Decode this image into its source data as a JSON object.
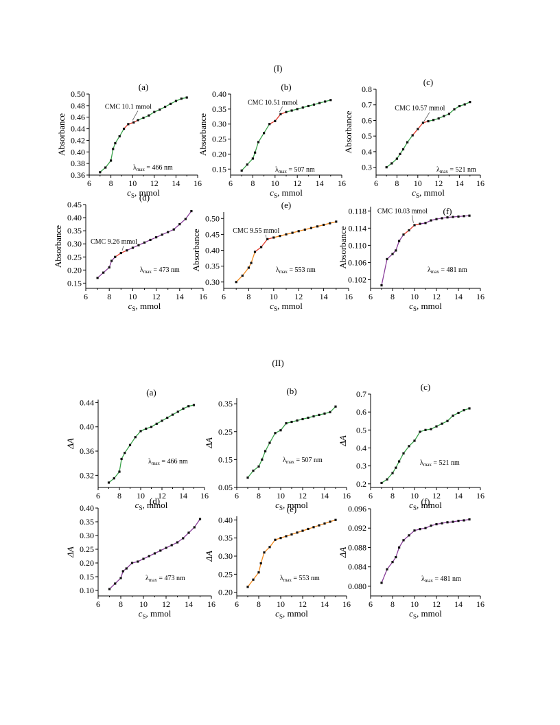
{
  "sections": [
    {
      "label": "(I)",
      "panels": [
        {
          "label": "(a)",
          "ylabel": "Absorbance",
          "xlabel_main": "c",
          "xlabel_sub": "S",
          "xlabel_unit": ", mmol",
          "lambda_text": "= 466 nm",
          "cmc_text": "CMC 10.1 mmol"
        },
        {
          "label": "(b)",
          "ylabel": "Absorbance",
          "xlabel_main": "c",
          "xlabel_sub": "S",
          "xlabel_unit": ", mmol",
          "lambda_text": "= 507 nm",
          "cmc_text": "CMC 10.51 mmol"
        },
        {
          "label": "(c)",
          "ylabel": "Absorbance",
          "xlabel_main": "c",
          "xlabel_sub": "S",
          "xlabel_unit": ", mmol",
          "lambda_text": "= 521 nm",
          "cmc_text": "CMC 10.57 mmol"
        },
        {
          "label": "(d)",
          "ylabel": "Absorbance",
          "xlabel_main": "c",
          "xlabel_sub": "S",
          "xlabel_unit": ", mmol",
          "lambda_text": "= 473 nm",
          "cmc_text": "CMC 9.26 mmol"
        },
        {
          "label": "(e)",
          "ylabel": "Absorbance",
          "xlabel_main": "c",
          "xlabel_sub": "S",
          "xlabel_unit": ", mmol",
          "lambda_text": "= 553 nm",
          "cmc_text": "CMC 9.55 mmol"
        },
        {
          "label": "(f)",
          "ylabel": "Absorbance",
          "xlabel_main": "c",
          "xlabel_sub": "S",
          "xlabel_unit": ", mmol",
          "lambda_text": "= 481 nm",
          "cmc_text": "CMC 10.03 mmol"
        }
      ]
    },
    {
      "label": "(II)",
      "panels": [
        {
          "label": "(a)",
          "ylabel": "ΔA",
          "xlabel_main": "c",
          "xlabel_sub": "S",
          "xlabel_unit": ", mmol",
          "lambda_text": "= 466 nm"
        },
        {
          "label": "(b)",
          "ylabel": "ΔA",
          "xlabel_main": "c",
          "xlabel_sub": "S",
          "xlabel_unit": ", mmol",
          "lambda_text": "= 507 nm"
        },
        {
          "label": "(c)",
          "ylabel": "ΔA",
          "xlabel_main": "c",
          "xlabel_sub": "S",
          "xlabel_unit": ", mmol",
          "lambda_text": "= 521 nm"
        },
        {
          "label": "(d)",
          "ylabel": "ΔA",
          "xlabel_main": "c",
          "xlabel_sub": "S",
          "xlabel_unit": ", mmol",
          "lambda_text": "= 473 nm"
        },
        {
          "label": "(e)",
          "ylabel": "ΔA",
          "xlabel_main": "c",
          "xlabel_sub": "S",
          "xlabel_unit": ", mmol",
          "lambda_text": "= 553 nm"
        },
        {
          "label": "(f)",
          "ylabel": "ΔA",
          "xlabel_main": "c",
          "xlabel_sub": "S",
          "xlabel_unit": ", mmol",
          "lambda_text": "= 481 nm"
        }
      ]
    }
  ],
  "lambda_symbol": "λ",
  "lambda_sub": "max",
  "colors": {
    "green": "#3aa24a",
    "green_dark": "#2e8b3e",
    "red": "#e0392b",
    "purple": "#8a3f9a",
    "orange": "#f28a1e",
    "marker": "#111111"
  },
  "chart_data": [
    {
      "type": "line",
      "panel": "(I)(a)",
      "xlim": [
        6,
        16
      ],
      "ylim": [
        0.36,
        0.5
      ],
      "xticks": [
        6,
        8,
        10,
        12,
        14,
        16
      ],
      "yticks": [
        0.36,
        0.38,
        0.4,
        0.42,
        0.44,
        0.46,
        0.48,
        0.5
      ],
      "ytick_labels": [
        "0.36",
        "0.38",
        "0.40",
        "0.42",
        "0.44",
        "0.46",
        "0.48",
        "0.50"
      ],
      "x": [
        7,
        7.5,
        8,
        8.2,
        8.4,
        8.8,
        9.2,
        9.6,
        10.1,
        10.5,
        11,
        11.5,
        12,
        12.5,
        13,
        13.5,
        14,
        14.5,
        15
      ],
      "y": [
        0.365,
        0.373,
        0.385,
        0.405,
        0.415,
        0.427,
        0.44,
        0.448,
        0.451,
        0.455,
        0.459,
        0.463,
        0.469,
        0.473,
        0.478,
        0.483,
        0.488,
        0.492,
        0.494
      ],
      "cmc": 10.1,
      "line_color": "green",
      "cmc_color": "red",
      "cmc_annotation": {
        "text_pos": [
          9.6,
          0.4745
        ],
        "arrow_end": [
          10.0,
          0.4545
        ]
      }
    },
    {
      "type": "line",
      "panel": "(I)(b)",
      "xlim": [
        6,
        16
      ],
      "ylim": [
        0.13,
        0.4
      ],
      "xticks": [
        6,
        8,
        10,
        12,
        14,
        16
      ],
      "yticks": [
        0.15,
        0.2,
        0.25,
        0.3,
        0.35,
        0.4
      ],
      "ytick_labels": [
        "0.15",
        "0.20",
        "0.25",
        "0.30",
        "0.35",
        "0.40"
      ],
      "x": [
        7,
        7.5,
        8,
        8.2,
        8.5,
        9,
        9.5,
        10,
        10.5,
        11,
        11.5,
        12,
        12.5,
        13,
        13.5,
        14,
        14.5,
        15
      ],
      "y": [
        0.145,
        0.165,
        0.185,
        0.205,
        0.24,
        0.27,
        0.3,
        0.31,
        0.333,
        0.34,
        0.345,
        0.35,
        0.355,
        0.36,
        0.365,
        0.37,
        0.375,
        0.38
      ],
      "cmc": 10.51,
      "line_color": "green",
      "cmc_color": "red",
      "cmc_annotation": {
        "text_pos": [
          9.8,
          0.365
        ],
        "arrow_end": [
          10.4,
          0.34
        ]
      }
    },
    {
      "type": "line",
      "panel": "(I)(c)",
      "xlim": [
        6,
        16
      ],
      "ylim": [
        0.25,
        0.8
      ],
      "xticks": [
        6,
        8,
        10,
        12,
        14,
        16
      ],
      "yticks": [
        0.3,
        0.4,
        0.5,
        0.6,
        0.7,
        0.8
      ],
      "ytick_labels": [
        "0.3",
        "0.4",
        "0.5",
        "0.6",
        "0.7",
        "0.8"
      ],
      "x": [
        7,
        7.5,
        8,
        8.3,
        8.6,
        9,
        9.5,
        10,
        10.5,
        11,
        11.5,
        12,
        12.5,
        13,
        13.5,
        14,
        14.5,
        15
      ],
      "y": [
        0.3,
        0.325,
        0.355,
        0.385,
        0.415,
        0.46,
        0.505,
        0.545,
        0.585,
        0.595,
        0.603,
        0.613,
        0.628,
        0.642,
        0.672,
        0.692,
        0.703,
        0.718
      ],
      "cmc": 10.57,
      "line_color": "green",
      "cmc_color": "red",
      "cmc_annotation": {
        "text_pos": [
          10.2,
          0.665
        ],
        "arrow_end": [
          10.6,
          0.595
        ]
      }
    },
    {
      "type": "line",
      "panel": "(I)(d)",
      "xlim": [
        6,
        16
      ],
      "ylim": [
        0.13,
        0.45
      ],
      "xticks": [
        6,
        8,
        10,
        12,
        14,
        16
      ],
      "yticks": [
        0.15,
        0.2,
        0.25,
        0.3,
        0.35,
        0.4,
        0.45
      ],
      "ytick_labels": [
        "0.15",
        "0.20",
        "0.25",
        "0.30",
        "0.35",
        "0.40",
        "0.45"
      ],
      "x": [
        7,
        7.5,
        8,
        8.2,
        8.5,
        9,
        9.5,
        10,
        10.5,
        11,
        11.5,
        12,
        12.5,
        13,
        13.5,
        14,
        14.5,
        15
      ],
      "y": [
        0.17,
        0.19,
        0.21,
        0.235,
        0.25,
        0.265,
        0.275,
        0.285,
        0.295,
        0.305,
        0.315,
        0.325,
        0.335,
        0.345,
        0.355,
        0.375,
        0.395,
        0.425
      ],
      "cmc": 9.26,
      "line_color": "purple",
      "cmc_color": "red",
      "cmc_annotation": {
        "text_pos": [
          8.4,
          0.3
        ],
        "arrow_end": [
          9.1,
          0.275
        ]
      }
    },
    {
      "type": "line",
      "panel": "(I)(e)",
      "xlim": [
        6,
        16
      ],
      "ylim": [
        0.28,
        0.52
      ],
      "xticks": [
        6,
        8,
        10,
        12,
        14,
        16
      ],
      "yticks": [
        0.3,
        0.35,
        0.4,
        0.45,
        0.5
      ],
      "ytick_labels": [
        "0.30",
        "0.35",
        "0.40",
        "0.45",
        "0.50"
      ],
      "x": [
        7,
        7.5,
        8,
        8.2,
        8.5,
        9,
        9.5,
        10,
        10.5,
        11,
        11.5,
        12,
        12.5,
        13,
        13.5,
        14,
        14.5,
        15
      ],
      "y": [
        0.3,
        0.32,
        0.345,
        0.36,
        0.395,
        0.41,
        0.435,
        0.44,
        0.445,
        0.45,
        0.455,
        0.46,
        0.465,
        0.47,
        0.475,
        0.48,
        0.485,
        0.49
      ],
      "cmc": 9.55,
      "line_color": "orange",
      "cmc_color": "red",
      "cmc_annotation": {
        "text_pos": [
          8.6,
          0.4555
        ],
        "arrow_end": [
          9.4,
          0.44
        ]
      }
    },
    {
      "type": "line",
      "panel": "(I)(f)",
      "xlim": [
        6,
        16
      ],
      "ylim": [
        0.1,
        0.119
      ],
      "xticks": [
        6,
        8,
        10,
        12,
        14,
        16
      ],
      "yticks": [
        0.102,
        0.106,
        0.11,
        0.114,
        0.118
      ],
      "ytick_labels": [
        "0.102",
        "0.106",
        "0.110",
        "0.114",
        "0.118"
      ],
      "x": [
        7,
        7.5,
        8,
        8.3,
        8.6,
        9,
        9.5,
        10,
        10.5,
        11,
        11.5,
        12,
        12.5,
        13,
        13.5,
        14,
        14.5,
        15
      ],
      "y": [
        0.1007,
        0.1068,
        0.108,
        0.1088,
        0.111,
        0.1125,
        0.1135,
        0.1147,
        0.115,
        0.1152,
        0.1158,
        0.1161,
        0.1163,
        0.1165,
        0.1166,
        0.1167,
        0.1168,
        0.1169
      ],
      "cmc": 10.03,
      "line_color": "purple",
      "cmc_color": "red",
      "cmc_annotation": {
        "text_pos": [
          8.9,
          0.1175
        ],
        "arrow_end": [
          9.9,
          0.1152
        ]
      }
    },
    {
      "type": "line",
      "panel": "(II)(a)",
      "xlim": [
        6,
        16
      ],
      "ylim": [
        0.3,
        0.445
      ],
      "xticks": [
        6,
        8,
        10,
        12,
        14,
        16
      ],
      "yticks": [
        0.32,
        0.36,
        0.4,
        0.44
      ],
      "ytick_labels": [
        "0.32",
        "0.36",
        "0.40",
        "0.44"
      ],
      "x": [
        7,
        7.5,
        8,
        8.2,
        8.5,
        9,
        9.5,
        10,
        10.5,
        11,
        11.5,
        12,
        12.5,
        13,
        13.5,
        14,
        14.5,
        15
      ],
      "y": [
        0.308,
        0.315,
        0.326,
        0.347,
        0.357,
        0.37,
        0.383,
        0.393,
        0.397,
        0.4,
        0.405,
        0.41,
        0.415,
        0.42,
        0.425,
        0.43,
        0.434,
        0.436
      ],
      "line_color": "green"
    },
    {
      "type": "line",
      "panel": "(II)(b)",
      "xlim": [
        6,
        16
      ],
      "ylim": [
        0.05,
        0.37
      ],
      "xticks": [
        6,
        8,
        10,
        12,
        14,
        16
      ],
      "yticks": [
        0.05,
        0.15,
        0.25,
        0.35
      ],
      "ytick_labels": [
        "0.05",
        "0.15",
        "0.25",
        "0.35"
      ],
      "x": [
        7,
        7.5,
        8,
        8.3,
        8.6,
        9,
        9.5,
        10,
        10.5,
        11,
        11.5,
        12,
        12.5,
        13,
        13.5,
        14,
        14.5,
        15
      ],
      "y": [
        0.085,
        0.11,
        0.125,
        0.15,
        0.18,
        0.21,
        0.245,
        0.255,
        0.28,
        0.285,
        0.29,
        0.295,
        0.3,
        0.305,
        0.31,
        0.315,
        0.32,
        0.34
      ],
      "line_color": "green"
    },
    {
      "type": "line",
      "panel": "(II)(c)",
      "xlim": [
        6,
        16
      ],
      "ylim": [
        0.18,
        0.7
      ],
      "xticks": [
        6,
        8,
        10,
        12,
        14,
        16
      ],
      "yticks": [
        0.2,
        0.3,
        0.4,
        0.5,
        0.6,
        0.7
      ],
      "ytick_labels": [
        "0.2",
        "0.3",
        "0.4",
        "0.5",
        "0.6",
        "0.7"
      ],
      "x": [
        7,
        7.5,
        8,
        8.3,
        8.6,
        9,
        9.5,
        10,
        10.5,
        11,
        11.5,
        12,
        12.5,
        13,
        13.5,
        14,
        14.5,
        15
      ],
      "y": [
        0.205,
        0.225,
        0.26,
        0.29,
        0.325,
        0.37,
        0.41,
        0.44,
        0.49,
        0.5,
        0.505,
        0.52,
        0.535,
        0.55,
        0.58,
        0.595,
        0.61,
        0.62
      ],
      "line_color": "green"
    },
    {
      "type": "line",
      "panel": "(II)(d)",
      "xlim": [
        6,
        16
      ],
      "ylim": [
        0.08,
        0.4
      ],
      "xticks": [
        6,
        8,
        10,
        12,
        14,
        16
      ],
      "yticks": [
        0.1,
        0.15,
        0.2,
        0.25,
        0.3,
        0.35,
        0.4
      ],
      "ytick_labels": [
        "0.10",
        "0.15",
        "0.20",
        "0.25",
        "0.30",
        "0.35",
        "0.40"
      ],
      "x": [
        7,
        7.5,
        8,
        8.2,
        8.5,
        9,
        9.5,
        10,
        10.5,
        11,
        11.5,
        12,
        12.5,
        13,
        13.5,
        14,
        14.5,
        15
      ],
      "y": [
        0.105,
        0.125,
        0.145,
        0.17,
        0.18,
        0.2,
        0.205,
        0.215,
        0.225,
        0.235,
        0.245,
        0.255,
        0.265,
        0.275,
        0.29,
        0.31,
        0.33,
        0.36
      ],
      "line_color": "purple"
    },
    {
      "type": "line",
      "panel": "(II)(e)",
      "xlim": [
        6,
        16
      ],
      "ylim": [
        0.19,
        0.41
      ],
      "xticks": [
        6,
        8,
        10,
        12,
        14,
        16
      ],
      "yticks": [
        0.2,
        0.25,
        0.3,
        0.35,
        0.4
      ],
      "ytick_labels": [
        "0.20",
        "0.25",
        "0.30",
        "0.35",
        "0.40"
      ],
      "x": [
        7,
        7.5,
        8,
        8.2,
        8.5,
        9,
        9.5,
        10,
        10.5,
        11,
        11.5,
        12,
        12.5,
        13,
        13.5,
        14,
        14.5,
        15
      ],
      "y": [
        0.215,
        0.235,
        0.255,
        0.28,
        0.31,
        0.325,
        0.345,
        0.35,
        0.355,
        0.36,
        0.365,
        0.37,
        0.375,
        0.38,
        0.385,
        0.39,
        0.395,
        0.4
      ],
      "line_color": "orange"
    },
    {
      "type": "line",
      "panel": "(II)(f)",
      "xlim": [
        6,
        16
      ],
      "ylim": [
        0.078,
        0.096
      ],
      "xticks": [
        6,
        8,
        10,
        12,
        14,
        16
      ],
      "yticks": [
        0.08,
        0.084,
        0.088,
        0.092,
        0.096
      ],
      "ytick_labels": [
        "0.080",
        "0.084",
        "0.088",
        "0.092",
        "0.096"
      ],
      "x": [
        7,
        7.5,
        8,
        8.3,
        8.6,
        9,
        9.5,
        10,
        10.5,
        11,
        11.5,
        12,
        12.5,
        13,
        13.5,
        14,
        14.5,
        15
      ],
      "y": [
        0.0807,
        0.0835,
        0.085,
        0.086,
        0.088,
        0.0895,
        0.0905,
        0.0915,
        0.0918,
        0.092,
        0.0925,
        0.0928,
        0.093,
        0.0932,
        0.0933,
        0.0935,
        0.0936,
        0.0938
      ],
      "line_color": "purple"
    }
  ]
}
